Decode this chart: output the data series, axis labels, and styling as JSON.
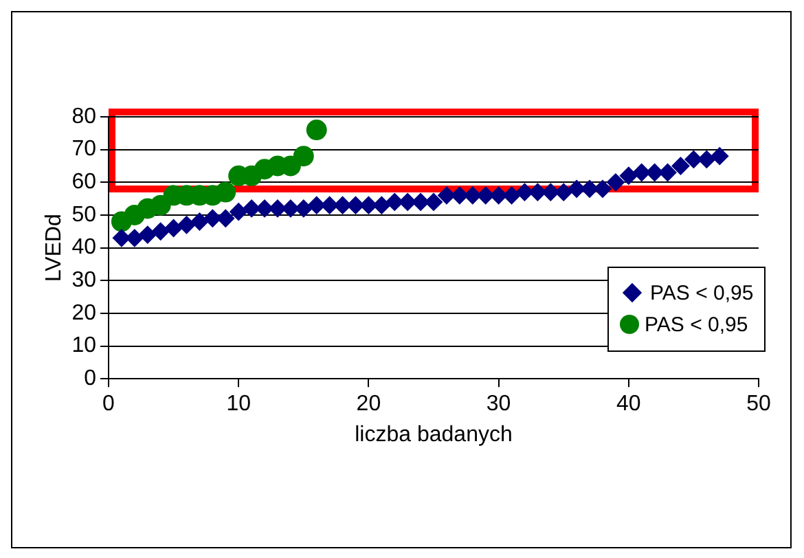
{
  "chart_data": {
    "type": "scatter",
    "xlabel": "liczba badanych",
    "ylabel": "LVEDd",
    "xlim": [
      0,
      50
    ],
    "xticks": [
      0,
      10,
      20,
      30,
      40,
      50
    ],
    "ylim": [
      0,
      80
    ],
    "yticks": [
      0,
      10,
      20,
      30,
      40,
      50,
      60,
      70,
      80
    ],
    "grid": "y",
    "legend": "bottom right",
    "series": [
      {
        "name": "PAS < 0,95",
        "color": "#000080",
        "marker": "diamond",
        "x": [
          1,
          2,
          3,
          4,
          5,
          6,
          7,
          8,
          9,
          10,
          11,
          12,
          13,
          14,
          15,
          16,
          17,
          18,
          19,
          20,
          21,
          22,
          23,
          24,
          25,
          26,
          27,
          28,
          29,
          30,
          31,
          32,
          33,
          34,
          35,
          36,
          37,
          38,
          39,
          40,
          41,
          42,
          43,
          44,
          45,
          46,
          47
        ],
        "values": [
          43,
          43,
          44,
          45,
          46,
          47,
          48,
          49,
          49,
          51,
          52,
          52,
          52,
          52,
          52,
          53,
          53,
          53,
          53,
          53,
          53,
          54,
          54,
          54,
          54,
          56,
          56,
          56,
          56,
          56,
          56,
          57,
          57,
          57,
          57,
          58,
          58,
          58,
          60,
          62,
          63,
          63,
          63,
          65,
          67,
          67,
          68
        ]
      },
      {
        "name": "PAS < 0,95",
        "color": "#008000",
        "marker": "circle",
        "x": [
          1,
          2,
          3,
          4,
          5,
          6,
          7,
          8,
          9,
          10,
          11,
          12,
          13,
          14,
          15,
          16
        ],
        "values": [
          48,
          50,
          52,
          53,
          56,
          56,
          56,
          56,
          57,
          62,
          62,
          64,
          65,
          65,
          68,
          76
        ]
      }
    ]
  }
}
